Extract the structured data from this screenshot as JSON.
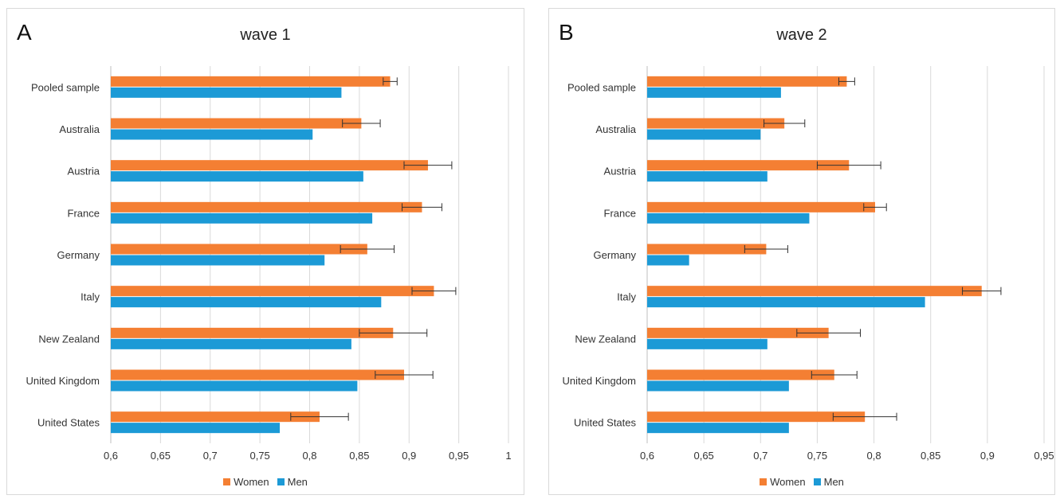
{
  "legend": {
    "women_label": "Women",
    "men_label": "Men"
  },
  "colors": {
    "women": "#f47f33",
    "men": "#1c9ad6",
    "grid": "#d9d9d9",
    "errorbar": "#333333"
  },
  "chart_data": [
    {
      "panel": "A",
      "type": "bar",
      "orientation": "horizontal",
      "title": "wave 1",
      "categories": [
        "Pooled sample",
        "Australia",
        "Austria",
        "France",
        "Germany",
        "Italy",
        "New Zealand",
        "United Kingdom",
        "United States"
      ],
      "series": [
        {
          "name": "Women",
          "values": [
            0.881,
            0.852,
            0.919,
            0.913,
            0.858,
            0.925,
            0.884,
            0.895,
            0.81
          ],
          "error": [
            0.007,
            0.019,
            0.024,
            0.02,
            0.027,
            0.022,
            0.034,
            0.029,
            0.029
          ]
        },
        {
          "name": "Men",
          "values": [
            0.832,
            0.803,
            0.854,
            0.863,
            0.815,
            0.872,
            0.842,
            0.848,
            0.77
          ]
        }
      ],
      "xlim": [
        0.6,
        1.0
      ],
      "xticks": [
        "0,6",
        "0,65",
        "0,7",
        "0,75",
        "0,8",
        "0,85",
        "0,9",
        "0,95",
        "1"
      ],
      "grid": true,
      "legend_position": "bottom"
    },
    {
      "panel": "B",
      "type": "bar",
      "orientation": "horizontal",
      "title": "wave 2",
      "categories": [
        "Pooled sample",
        "Australia",
        "Austria",
        "France",
        "Germany",
        "Italy",
        "New Zealand",
        "United Kingdom",
        "United States"
      ],
      "series": [
        {
          "name": "Women",
          "values": [
            0.776,
            0.721,
            0.778,
            0.801,
            0.705,
            0.895,
            0.76,
            0.765,
            0.792
          ],
          "error": [
            0.007,
            0.018,
            0.028,
            0.01,
            0.019,
            0.017,
            0.028,
            0.02,
            0.028
          ]
        },
        {
          "name": "Men",
          "values": [
            0.718,
            0.7,
            0.706,
            0.743,
            0.637,
            0.845,
            0.706,
            0.725,
            0.725
          ]
        }
      ],
      "xlim": [
        0.6,
        0.95
      ],
      "xticks": [
        "0,6",
        "0,65",
        "0,7",
        "0,75",
        "0,8",
        "0,85",
        "0,9",
        "0,95"
      ],
      "grid": true,
      "legend_position": "bottom"
    }
  ]
}
